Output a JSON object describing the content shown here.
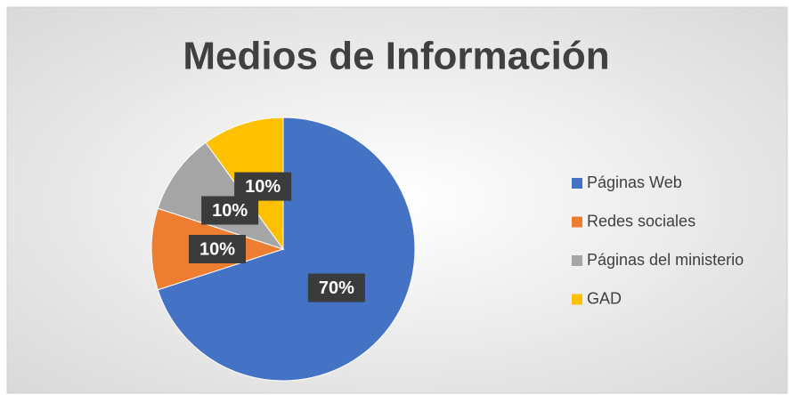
{
  "chart_data": {
    "type": "pie",
    "title": "Medios de Información",
    "categories": [
      "Páginas Web",
      "Redes sociales",
      "Páginas del ministerio",
      "GAD"
    ],
    "values": [
      70,
      10,
      10,
      10
    ],
    "value_labels": [
      "70%",
      "10%",
      "10%",
      "10%"
    ],
    "colors": [
      "#4472c4",
      "#ed7d31",
      "#a5a5a5",
      "#ffc000"
    ],
    "legend": "right"
  }
}
